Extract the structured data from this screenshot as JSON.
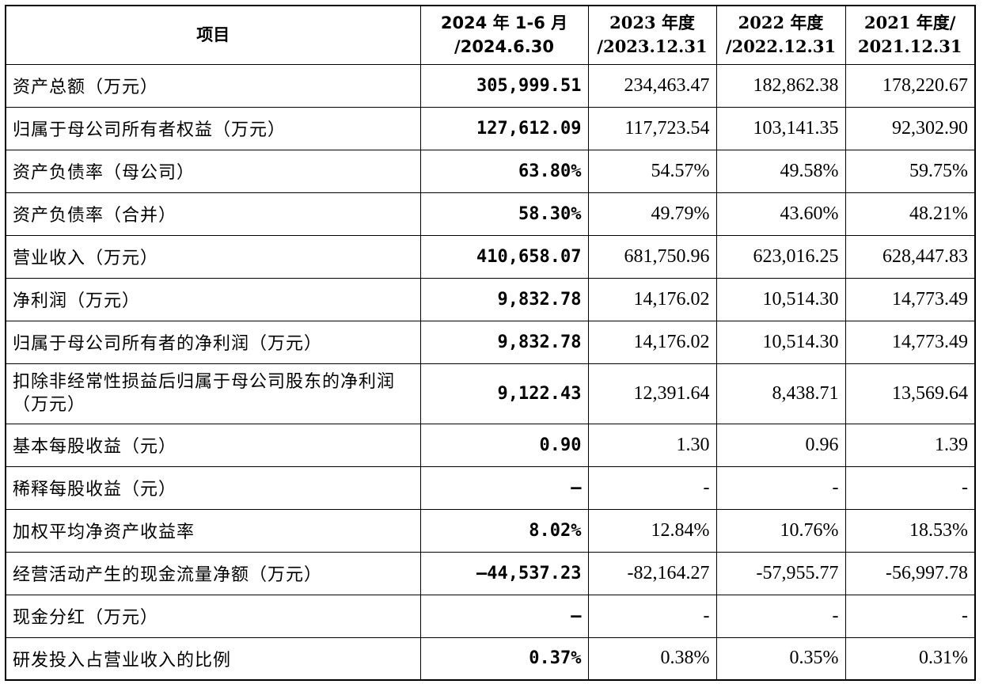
{
  "header": {
    "item": "项目",
    "cols": [
      {
        "line1": "2024 年 1-6 月",
        "line2": "/2024.6.30"
      },
      {
        "line1": "2023 年度",
        "line2": "/2023.12.31"
      },
      {
        "line1": "2022 年度",
        "line2": "/2022.12.31"
      },
      {
        "line1": "2021 年度/",
        "line2": "2021.12.31"
      }
    ]
  },
  "rows": [
    {
      "label": "资产总额（万元）",
      "values": [
        "305,999.51",
        "234,463.47",
        "182,862.38",
        "178,220.67"
      ]
    },
    {
      "label": "归属于母公司所有者权益（万元）",
      "values": [
        "127,612.09",
        "117,723.54",
        "103,141.35",
        "92,302.90"
      ]
    },
    {
      "label": "资产负债率（母公司）",
      "values": [
        "63.80%",
        "54.57%",
        "49.58%",
        "59.75%"
      ]
    },
    {
      "label": "资产负债率（合并）",
      "values": [
        "58.30%",
        "49.79%",
        "43.60%",
        "48.21%"
      ]
    },
    {
      "label": "营业收入（万元）",
      "values": [
        "410,658.07",
        "681,750.96",
        "623,016.25",
        "628,447.83"
      ]
    },
    {
      "label": "净利润（万元）",
      "values": [
        "9,832.78",
        "14,176.02",
        "10,514.30",
        "14,773.49"
      ]
    },
    {
      "label": "归属于母公司所有者的净利润（万元）",
      "values": [
        "9,832.78",
        "14,176.02",
        "10,514.30",
        "14,773.49"
      ]
    },
    {
      "label": "扣除非经常性损益后归属于母公司股东的净利润（万元）",
      "values": [
        "9,122.43",
        "12,391.64",
        "8,438.71",
        "13,569.64"
      ]
    },
    {
      "label": "基本每股收益（元）",
      "values": [
        "0.90",
        "1.30",
        "0.96",
        "1.39"
      ]
    },
    {
      "label": "稀释每股收益（元）",
      "values": [
        "–",
        "-",
        "-",
        "-"
      ]
    },
    {
      "label": "加权平均净资产收益率",
      "values": [
        "8.02%",
        "12.84%",
        "10.76%",
        "18.53%"
      ]
    },
    {
      "label": "经营活动产生的现金流量净额（万元）",
      "values": [
        "–44,537.23",
        "-82,164.27",
        "-57,955.77",
        "-56,997.78"
      ]
    },
    {
      "label": "现金分红（万元）",
      "values": [
        "–",
        "-",
        "-",
        "-"
      ]
    },
    {
      "label": "研发投入占营业收入的比例",
      "values": [
        "0.37%",
        "0.38%",
        "0.35%",
        "0.31%"
      ]
    }
  ]
}
